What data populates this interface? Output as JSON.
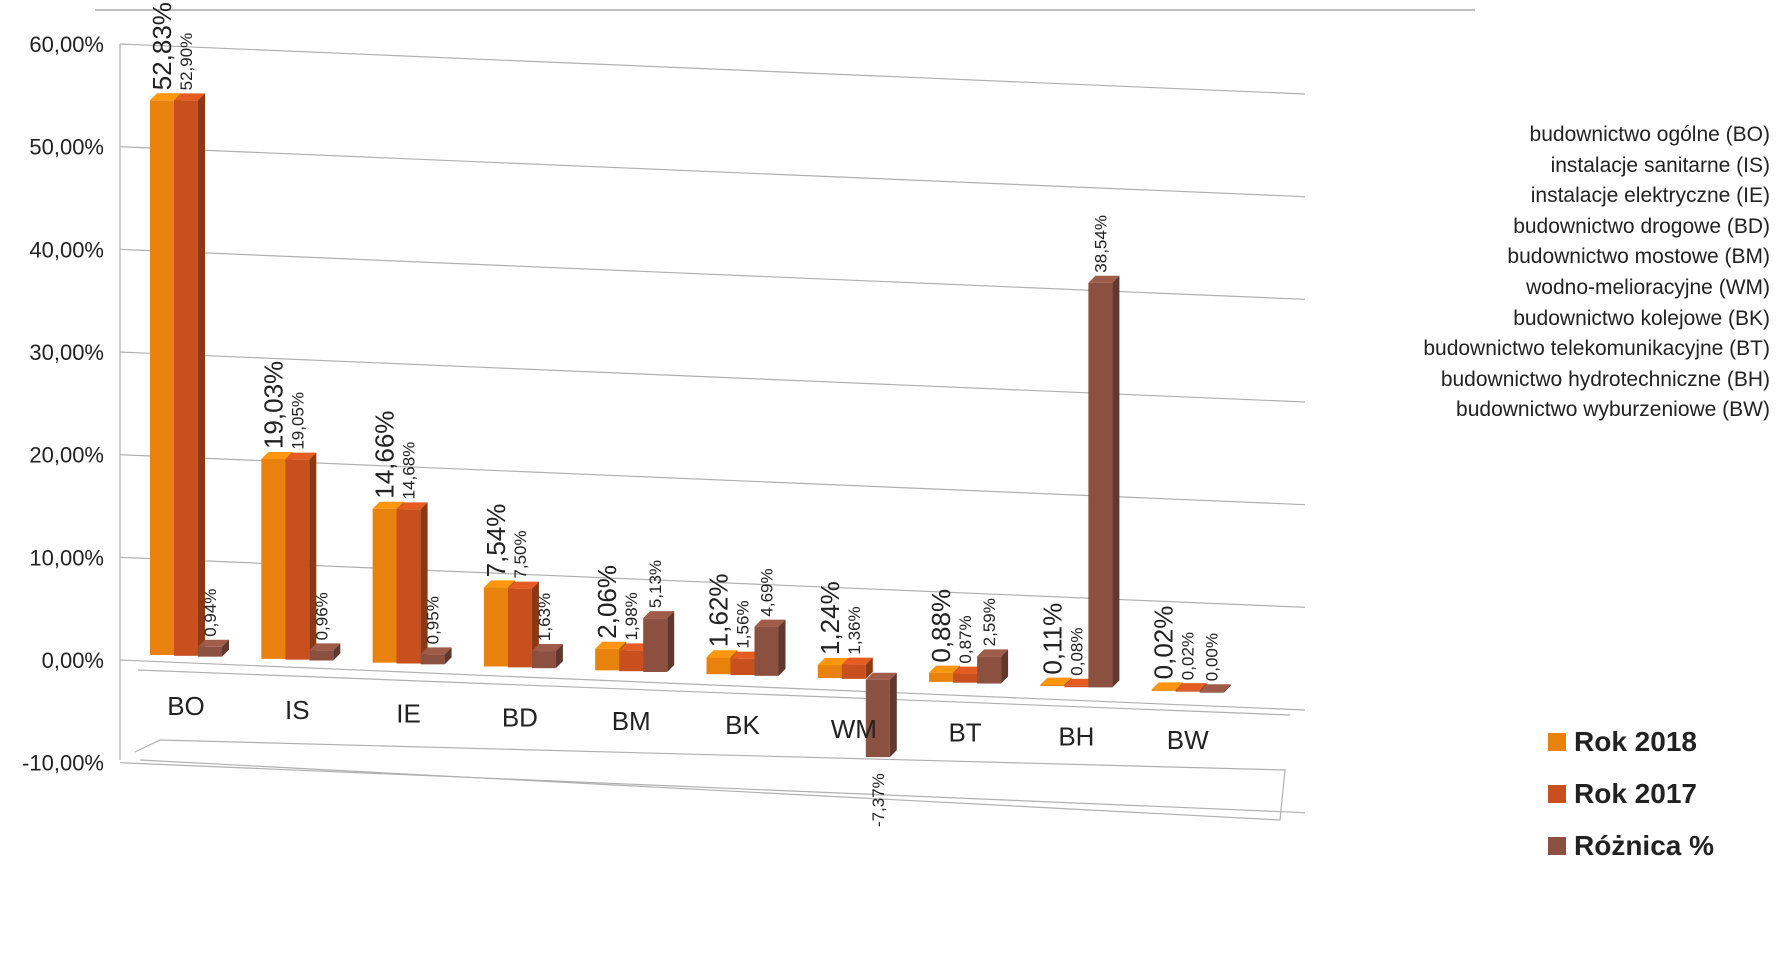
{
  "chart_data": {
    "type": "bar",
    "title": "",
    "xlabel": "",
    "ylabel": "",
    "ylim": [
      -10,
      60
    ],
    "grid": true,
    "legend_position": "right",
    "yticks": [
      "60,00%",
      "50,00%",
      "40,00%",
      "30,00%",
      "20,00%",
      "10,00%",
      "0,00%",
      "-10,00%"
    ],
    "categories": [
      "BO",
      "IS",
      "IE",
      "BD",
      "BM",
      "BK",
      "WM",
      "BT",
      "BH",
      "BW"
    ],
    "category_names": [
      "budownictwo ogólne (BO)",
      "instalacje sanitarne (IS)",
      "instalacje elektryczne (IE)",
      "budownictwo drogowe (BD)",
      "budownictwo mostowe (BM)",
      "wodno-melioracyjne (WM)",
      "budownictwo kolejowe (BK)",
      "budownictwo telekomunikacyjne (BT)",
      "budownictwo hydrotechniczne (BH)",
      "budownictwo wyburzeniowe (BW)"
    ],
    "series": [
      {
        "name": "Rok 2018",
        "color": "#E8820C",
        "values": [
          52.83,
          19.03,
          14.66,
          7.54,
          2.06,
          1.62,
          1.24,
          0.88,
          0.11,
          0.02
        ],
        "labels": [
          "52,83%",
          "19,03%",
          "14,66%",
          "7,54%",
          "2,06%",
          "1,62%",
          "1,24%",
          "0,88%",
          "0,11%",
          "0,02%"
        ]
      },
      {
        "name": "Rok 2017",
        "color": "#C7501E",
        "values": [
          52.9,
          19.05,
          14.68,
          7.5,
          1.98,
          1.56,
          1.36,
          0.87,
          0.08,
          0.02
        ],
        "labels": [
          "52,90%",
          "19,05%",
          "14,68%",
          "7,50%",
          "1,98%",
          "1,56%",
          "1,36%",
          "0,87%",
          "0,08%",
          "0,02%"
        ]
      },
      {
        "name": "Różnica %",
        "color": "#8B5040",
        "values": [
          0.94,
          0.96,
          0.95,
          1.63,
          5.13,
          4.69,
          -7.37,
          2.59,
          38.54,
          0.0
        ],
        "labels": [
          "0,94%",
          "0,96%",
          "0,95%",
          "1,63%",
          "5,13%",
          "4,69%",
          "-7,37%",
          "2,59%",
          "38,54%",
          "0,00%"
        ]
      }
    ]
  }
}
